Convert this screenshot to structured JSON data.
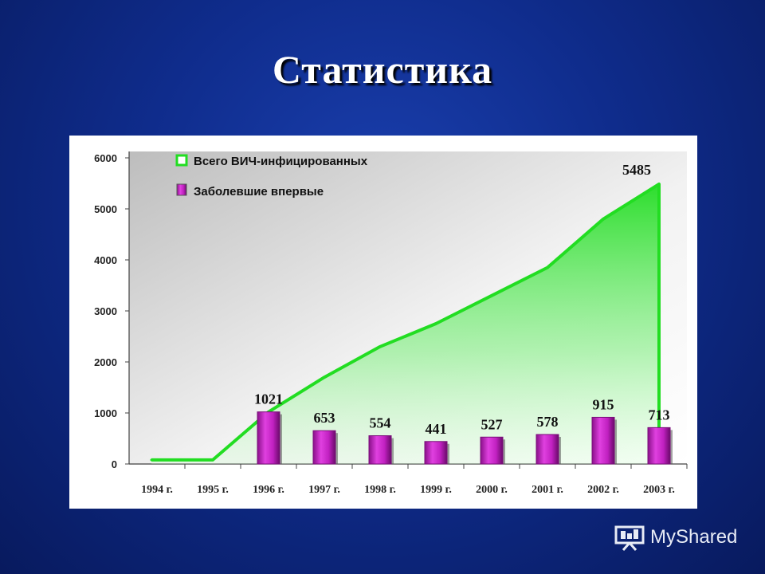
{
  "slide": {
    "title": "Статистика"
  },
  "watermark": {
    "text": "MyShared"
  },
  "colors": {
    "background": "#0f2c8c",
    "line": "#22dd22",
    "area": "#55ee55",
    "bar": "#cc22cc",
    "bar_dark": "#7a0f7a"
  },
  "chart_data": {
    "type": "bar",
    "categories": [
      "1994 г.",
      "1995 г.",
      "1996 г.",
      "1997 г.",
      "1998 г.",
      "1999 г.",
      "2000 г.",
      "2001 г.",
      "2002 г.",
      "2003 г."
    ],
    "series": [
      {
        "name": "Всего ВИЧ-инфицированных",
        "type": "area",
        "values": [
          80,
          80,
          1021,
          1700,
          2300,
          2750,
          3300,
          3850,
          4800,
          5485
        ],
        "labels": [
          "",
          "",
          "",
          "",
          "",
          "",
          "",
          "",
          "",
          "5485"
        ]
      },
      {
        "name": "Заболевшие впервые",
        "type": "bar",
        "values": [
          0,
          0,
          1021,
          653,
          554,
          441,
          527,
          578,
          915,
          713
        ],
        "labels": [
          "",
          "",
          "1021",
          "653",
          "554",
          "441",
          "527",
          "578",
          "915",
          "713"
        ]
      }
    ],
    "yticks": [
      "0",
      "1000",
      "2000",
      "3000",
      "4000",
      "5000",
      "6000"
    ],
    "ylim": [
      0,
      6000
    ],
    "legend_position": "top-left"
  }
}
